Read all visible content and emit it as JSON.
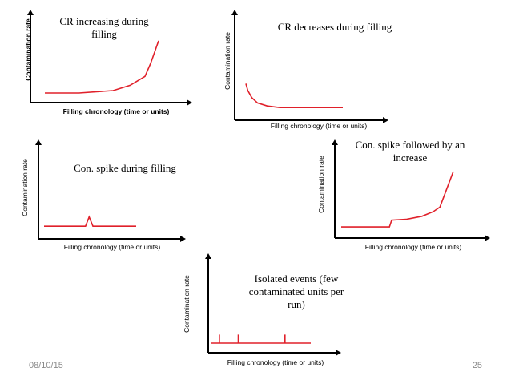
{
  "colors": {
    "curve": "#e0202a",
    "axis": "#000000",
    "footer": "#8a8a8a"
  },
  "footer": {
    "date": "08/10/15",
    "page": "25"
  },
  "chart_data": [
    {
      "type": "line",
      "title": [
        "CR increasing during",
        "filling"
      ],
      "xlabel": "Filling chronology (time or units)",
      "ylabel": "Contamination rate",
      "label_weight": "bold",
      "x": [
        0,
        30,
        60,
        75,
        88,
        93,
        100
      ],
      "y": [
        0.0,
        0.0,
        0.04,
        0.13,
        0.28,
        0.5,
        0.88
      ],
      "xlim": [
        0,
        100
      ],
      "ylim": [
        0,
        1
      ]
    },
    {
      "type": "line",
      "title": [
        "CR decreases during filling"
      ],
      "xlabel": "Filling chronology (time or units)",
      "ylabel": "Contamination rate",
      "label_weight": "normal",
      "x": [
        0,
        2,
        6,
        12,
        22,
        35,
        60,
        100
      ],
      "y": [
        0.35,
        0.26,
        0.17,
        0.1,
        0.06,
        0.04,
        0.04,
        0.04
      ],
      "xlim": [
        0,
        100
      ],
      "ylim": [
        0,
        1
      ]
    },
    {
      "type": "line",
      "title": [
        "Con. spike during filling"
      ],
      "xlabel": "Filling chronology (time or units)",
      "ylabel": "Contamination rate",
      "label_weight": "normal",
      "x": [
        0,
        45,
        49,
        53,
        100
      ],
      "y": [
        0.04,
        0.04,
        0.16,
        0.04,
        0.04
      ],
      "xlim": [
        0,
        100
      ],
      "ylim": [
        0,
        1
      ]
    },
    {
      "type": "line",
      "title": [
        "Con. spike followed by an",
        "increase"
      ],
      "xlabel": "Filling chronology (time or units)",
      "ylabel": "Contamination rate",
      "label_weight": "normal",
      "x": [
        0,
        43,
        45,
        58,
        72,
        82,
        88,
        100
      ],
      "y": [
        0.02,
        0.02,
        0.11,
        0.12,
        0.16,
        0.22,
        0.28,
        0.75
      ],
      "xlim": [
        0,
        100
      ],
      "ylim": [
        0,
        1
      ]
    },
    {
      "type": "line",
      "title": [
        "Isolated events (few",
        "contaminated units per",
        "run)"
      ],
      "xlabel": "Filling chronology (time or units)",
      "ylabel": "Contamination rate",
      "label_weight": "normal",
      "x": [
        0,
        8,
        8,
        8,
        27,
        27,
        27,
        74,
        74,
        74,
        100
      ],
      "y": [
        0.0,
        0.0,
        0.12,
        0.0,
        0.0,
        0.12,
        0.0,
        0.0,
        0.12,
        0.0,
        0.0
      ],
      "xlim": [
        0,
        100
      ],
      "ylim": [
        0,
        1
      ]
    }
  ]
}
